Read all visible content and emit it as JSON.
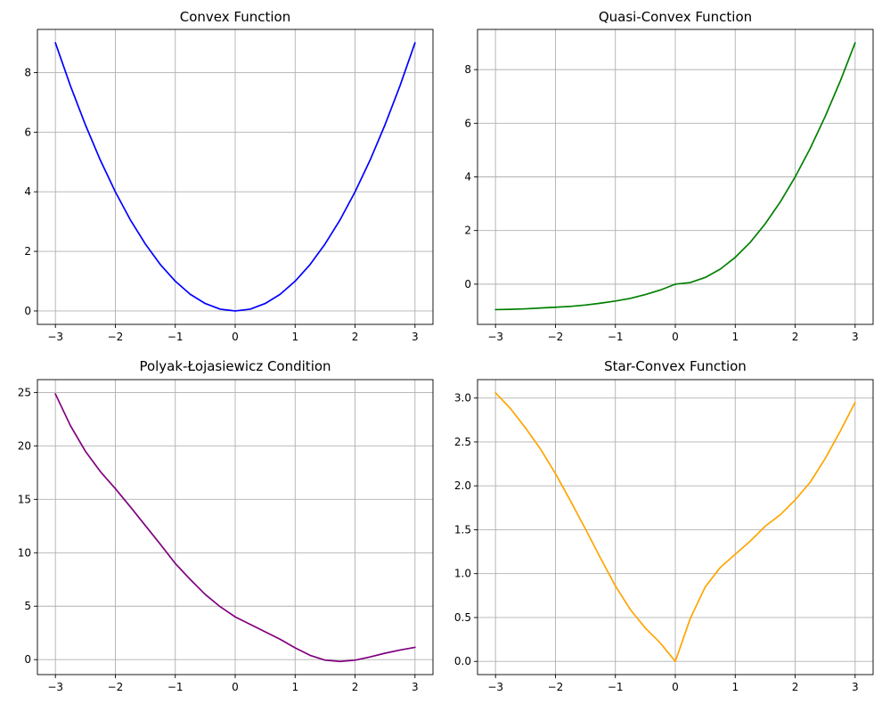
{
  "chart_data": [
    {
      "type": "line",
      "title": "Convex Function",
      "xlabel": "",
      "ylabel": "",
      "xlim": [
        -3.3,
        3.3
      ],
      "ylim": [
        -0.45,
        9.45
      ],
      "xticks": [
        -3,
        -2,
        -1,
        0,
        1,
        2,
        3
      ],
      "xtick_labels": [
        "−3",
        "−2",
        "−1",
        "0",
        "1",
        "2",
        "3"
      ],
      "yticks": [
        0,
        2,
        4,
        6,
        8
      ],
      "ytick_labels": [
        "0",
        "2",
        "4",
        "6",
        "8"
      ],
      "grid": true,
      "series": [
        {
          "color": "#0000ff",
          "x": [
            -3,
            -2.75,
            -2.5,
            -2.25,
            -2,
            -1.75,
            -1.5,
            -1.25,
            -1,
            -0.75,
            -0.5,
            -0.25,
            0,
            0.25,
            0.5,
            0.75,
            1,
            1.25,
            1.5,
            1.75,
            2,
            2.25,
            2.5,
            2.75,
            3
          ],
          "y": [
            9,
            7.56,
            6.25,
            5.06,
            4,
            3.06,
            2.25,
            1.56,
            1,
            0.56,
            0.25,
            0.06,
            0,
            0.06,
            0.25,
            0.56,
            1,
            1.56,
            2.25,
            3.06,
            4,
            5.06,
            6.25,
            7.56,
            9
          ]
        }
      ]
    },
    {
      "type": "line",
      "title": "Quasi-Convex Function",
      "xlabel": "",
      "ylabel": "",
      "xlim": [
        -3.3,
        3.3
      ],
      "ylim": [
        -1.5,
        9.5
      ],
      "xticks": [
        -3,
        -2,
        -1,
        0,
        1,
        2,
        3
      ],
      "xtick_labels": [
        "−3",
        "−2",
        "−1",
        "0",
        "1",
        "2",
        "3"
      ],
      "yticks": [
        0,
        2,
        4,
        6,
        8
      ],
      "ytick_labels": [
        "0",
        "2",
        "4",
        "6",
        "8"
      ],
      "grid": true,
      "series": [
        {
          "color": "#008000",
          "x": [
            -3,
            -2.75,
            -2.5,
            -2.25,
            -2,
            -1.75,
            -1.5,
            -1.25,
            -1,
            -0.75,
            -0.5,
            -0.25,
            0,
            0.25,
            0.5,
            0.75,
            1,
            1.25,
            1.5,
            1.75,
            2,
            2.25,
            2.5,
            2.75,
            3
          ],
          "y": [
            -0.95,
            -0.94,
            -0.92,
            -0.89,
            -0.86,
            -0.83,
            -0.78,
            -0.71,
            -0.63,
            -0.53,
            -0.39,
            -0.22,
            0,
            0.06,
            0.25,
            0.56,
            1,
            1.56,
            2.25,
            3.06,
            4,
            5.06,
            6.25,
            7.56,
            9
          ]
        }
      ]
    },
    {
      "type": "line",
      "title": "Polyak-Łojasiewicz Condition",
      "xlabel": "",
      "ylabel": "",
      "xlim": [
        -3.3,
        3.3
      ],
      "ylim": [
        -1.4,
        26.2
      ],
      "xticks": [
        -3,
        -2,
        -1,
        0,
        1,
        2,
        3
      ],
      "xtick_labels": [
        "−3",
        "−2",
        "−1",
        "0",
        "1",
        "2",
        "3"
      ],
      "yticks": [
        0,
        5,
        10,
        15,
        20,
        25
      ],
      "ytick_labels": [
        "0",
        "5",
        "10",
        "15",
        "20",
        "25"
      ],
      "grid": true,
      "series": [
        {
          "color": "#800080",
          "x": [
            -3,
            -2.75,
            -2.5,
            -2.25,
            -2,
            -1.75,
            -1.5,
            -1.25,
            -1,
            -0.75,
            -0.5,
            -0.25,
            0,
            0.25,
            0.5,
            0.75,
            1,
            1.25,
            1.5,
            1.75,
            2,
            2.25,
            2.5,
            2.75,
            3
          ],
          "y": [
            24.86,
            21.9,
            19.5,
            17.6,
            16,
            14.3,
            12.55,
            10.8,
            9,
            7.5,
            6.1,
            4.95,
            4,
            3.3,
            2.6,
            1.9,
            1.1,
            0.4,
            -0.05,
            -0.17,
            -0.05,
            0.25,
            0.6,
            0.9,
            1.15
          ]
        }
      ]
    },
    {
      "type": "line",
      "title": "Star-Convex Function",
      "xlabel": "",
      "ylabel": "",
      "xlim": [
        -3.3,
        3.3
      ],
      "ylim": [
        -0.15,
        3.21
      ],
      "xticks": [
        -3,
        -2,
        -1,
        0,
        1,
        2,
        3
      ],
      "xtick_labels": [
        "−3",
        "−2",
        "−1",
        "0",
        "1",
        "2",
        "3"
      ],
      "yticks": [
        0,
        0.5,
        1,
        1.5,
        2,
        2.5,
        3
      ],
      "ytick_labels": [
        "0.0",
        "0.5",
        "1.0",
        "1.5",
        "2.0",
        "2.5",
        "3.0"
      ],
      "grid": true,
      "series": [
        {
          "color": "#ffa500",
          "x": [
            -3,
            -2.75,
            -2.5,
            -2.25,
            -2,
            -1.75,
            -1.5,
            -1.25,
            -1,
            -0.75,
            -0.5,
            -0.25,
            0,
            0.25,
            0.5,
            0.75,
            1,
            1.25,
            1.5,
            1.75,
            2,
            2.25,
            2.5,
            2.75,
            3
          ],
          "y": [
            3.06,
            2.88,
            2.66,
            2.42,
            2.14,
            1.83,
            1.51,
            1.18,
            0.86,
            0.59,
            0.38,
            0.21,
            0,
            0.49,
            0.85,
            1.07,
            1.22,
            1.37,
            1.54,
            1.67,
            1.84,
            2.04,
            2.31,
            2.62,
            2.95
          ]
        }
      ]
    }
  ]
}
